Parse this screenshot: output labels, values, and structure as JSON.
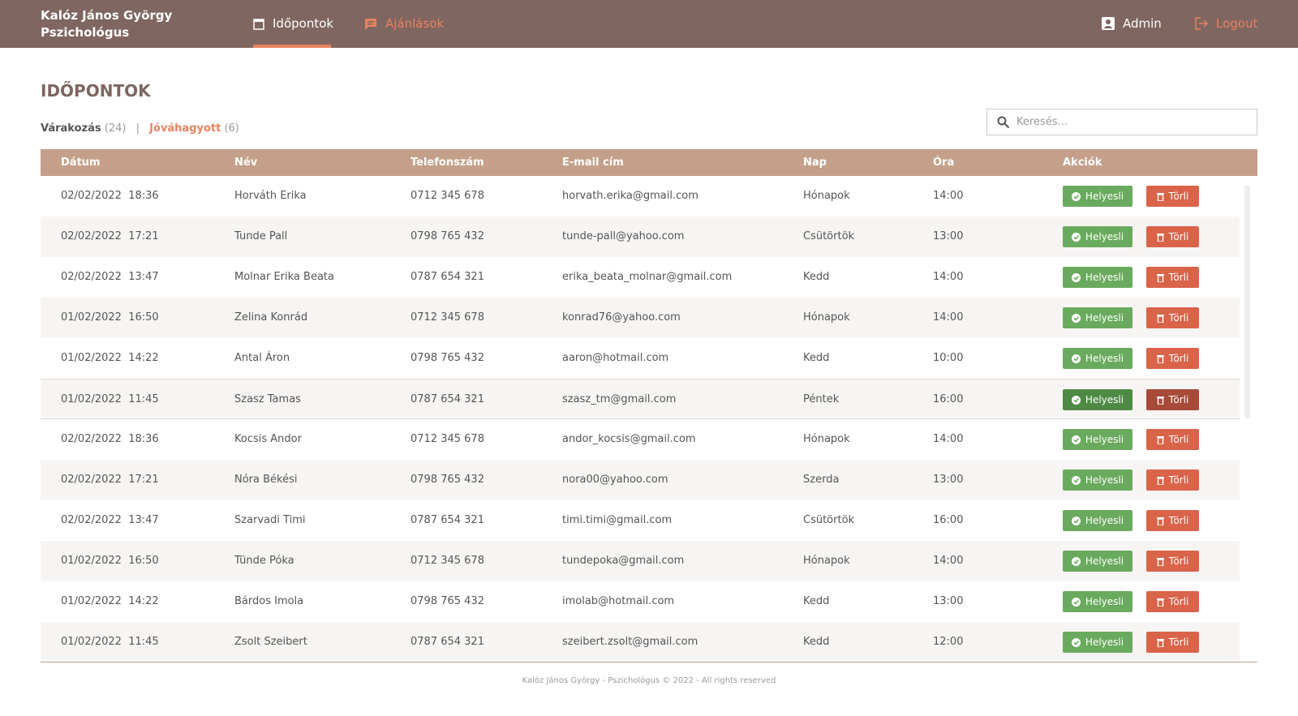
{
  "header": {
    "brand": [
      "Kalóz János György",
      "Pszichológus"
    ],
    "nav": [
      "Időpontok",
      "Ajánlások"
    ],
    "user": "Admin",
    "logout": "Logout"
  },
  "page": {
    "title": "IDŐPONTOK",
    "tabs": [
      {
        "label": "Várakozás",
        "count": "(24)"
      },
      {
        "label": "Jóváhagyott",
        "count": "(6)"
      }
    ],
    "search": "Keresés..."
  },
  "table": {
    "columns": [
      "Dátum",
      "Név",
      "Telefonszám",
      "E-mail cím",
      "Nap",
      "Óra",
      "Akciók"
    ],
    "actions": [
      "Helyesli",
      "Törli"
    ],
    "rows": [
      [
        "02/02/2022  18:36",
        "Horváth Erika",
        "0712 345 678",
        "horvath.erika@gmail.com",
        "Hónapok",
        "14:00"
      ],
      [
        "02/02/2022  17:21",
        "Tunde Pall",
        "0798 765 432",
        "tunde-pall@yahoo.com",
        "Csütörtök",
        "13:00"
      ],
      [
        "02/02/2022  13:47",
        "Molnar Erika Beata",
        "0787 654 321",
        "erika_beata_molnar@gmail.com",
        "Kedd",
        "14:00"
      ],
      [
        "01/02/2022  16:50",
        "Zelina Konrád",
        "0712 345 678",
        "konrad76@yahoo.com",
        "Hónapok",
        "14:00"
      ],
      [
        "01/02/2022  14:22",
        "Antal Áron",
        "0798 765 432",
        "aaron@hotmail.com",
        "Kedd",
        "10:00"
      ],
      [
        "01/02/2022  11:45",
        "Szasz Tamas",
        "0787 654 321",
        "szasz_tm@gmail.com",
        "Péntek",
        "16:00"
      ],
      [
        "02/02/2022  18:36",
        "Kocsis Andor",
        "0712 345 678",
        "andor_kocsis@gmail.com",
        "Hónapok",
        "14:00"
      ],
      [
        "02/02/2022  17:21",
        "Nóra Békési",
        "0798 765 432",
        "nora00@yahoo.com",
        "Szerda",
        "13:00"
      ],
      [
        "02/02/2022  13:47",
        "Szarvadi Timi",
        "0787 654 321",
        "timi.timi@gmail.com",
        "Csütörtök",
        "16:00"
      ],
      [
        "01/02/2022  16:50",
        "Tünde Póka",
        "0712 345 678",
        "tundepoka@gmail.com",
        "Hónapok",
        "14:00"
      ],
      [
        "01/02/2022  14:22",
        "Bárdos Imola",
        "0798 765 432",
        "imolab@hotmail.com",
        "Kedd",
        "13:00"
      ],
      [
        "01/02/2022  11:45",
        "Zsolt Szeibert",
        "0787 654 321",
        "szeibert.zsolt@gmail.com",
        "Kedd",
        "12:00"
      ]
    ]
  },
  "footer": "Kalóz János György - Pszichológus © 2022 - All rights reserved"
}
